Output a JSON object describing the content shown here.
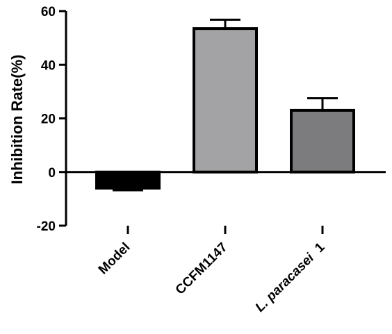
{
  "chart_data": {
    "type": "bar",
    "title": "",
    "xlabel": "",
    "ylabel": "Inhibition Rate(%)",
    "ylim": [
      -20,
      60
    ],
    "yticks": [
      -20,
      0,
      20,
      40,
      60
    ],
    "grid": false,
    "categories": [
      {
        "label": "Model",
        "italic_part": "",
        "suffix": ""
      },
      {
        "label": "CCFM1147",
        "italic_part": "",
        "suffix": ""
      },
      {
        "label": "L. paracasei 1",
        "italic_part": "L. paracasei",
        "suffix": "1"
      }
    ],
    "values": [
      -6,
      53.5,
      23
    ],
    "errors": [
      0.8,
      3.3,
      4.5
    ],
    "colors": [
      "#000000",
      "#a3a3a5",
      "#7c7c7e"
    ]
  }
}
